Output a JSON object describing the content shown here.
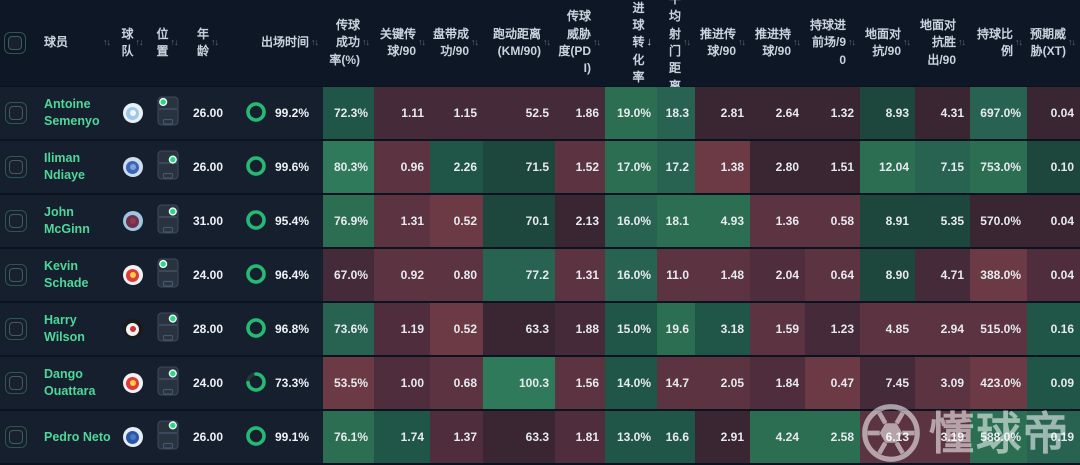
{
  "table": {
    "header": {
      "left": {
        "player": "球员",
        "team": "球队",
        "position": "位置",
        "age": "年龄",
        "minutes": "出场时间"
      },
      "stat_columns": [
        {
          "key": "pass-accuracy",
          "label": "传球成功率(%)",
          "sort": "both"
        },
        {
          "key": "key-passes",
          "label": "关键传球/90",
          "sort": "both"
        },
        {
          "key": "dribbles",
          "label": "盘带成功/90",
          "sort": "both"
        },
        {
          "key": "distance",
          "label": "跑动距离(KM/90)",
          "sort": "both"
        },
        {
          "key": "pass-threat",
          "label": "传球威胁度(PDI)",
          "sort": "both"
        },
        {
          "key": "goal-conversion",
          "label": "进球转化率",
          "sort": "desc"
        },
        {
          "key": "avg-shot-distance",
          "label": "平均射门距离",
          "sort": "both"
        },
        {
          "key": "progressive-passes",
          "label": "推进传球/90",
          "sort": "both"
        },
        {
          "key": "progressive-carries",
          "label": "推进持球/90",
          "sort": "both"
        },
        {
          "key": "carries-final-third",
          "label": "持球进前场/90",
          "sort": "both"
        },
        {
          "key": "ground-duels",
          "label": "地面对抗/90",
          "sort": "both"
        },
        {
          "key": "ground-duels-won",
          "label": "地面对抗胜出/90",
          "sort": "both"
        },
        {
          "key": "possession-ratio",
          "label": "持球比例",
          "sort": "both"
        },
        {
          "key": "expected-threat",
          "label": "预期威胁(XT)",
          "sort": "both"
        }
      ]
    },
    "rows": [
      {
        "player": "Antoine Semenyo",
        "team": "manchester-city",
        "badge": {
          "ring": "#e9f1f8",
          "bg": "#9ec8e8",
          "dot": "#f2f6fa"
        },
        "pos_dot": {
          "x": 0.28,
          "y": 0.2
        },
        "age": "26.00",
        "minutes": "99.2%",
        "minutes_pct": 99.2,
        "stats": [
          {
            "v": "72.3%",
            "c": "g2"
          },
          {
            "v": "1.11",
            "c": "n2"
          },
          {
            "v": "1.15",
            "c": "n2"
          },
          {
            "v": "52.5",
            "c": "n2"
          },
          {
            "v": "1.86",
            "c": "n2"
          },
          {
            "v": "19.0%",
            "c": "g4"
          },
          {
            "v": "18.3",
            "c": "g3"
          },
          {
            "v": "2.81",
            "c": "n1"
          },
          {
            "v": "2.64",
            "c": "n1"
          },
          {
            "v": "1.32",
            "c": "n1"
          },
          {
            "v": "8.93",
            "c": "g1"
          },
          {
            "v": "4.31",
            "c": "n1"
          },
          {
            "v": "697.0%",
            "c": "g3"
          },
          {
            "v": "0.04",
            "c": "n1"
          }
        ]
      },
      {
        "player": "Iliman Ndiaye",
        "team": "everton",
        "badge": {
          "ring": "#cfdcef",
          "bg": "#3a66b5",
          "dot": "#7fa3d8"
        },
        "pos_dot": {
          "x": 0.72,
          "y": 0.32
        },
        "age": "26.00",
        "minutes": "99.6%",
        "minutes_pct": 99.6,
        "stats": [
          {
            "v": "80.3%",
            "c": "g5"
          },
          {
            "v": "0.96",
            "c": "r2"
          },
          {
            "v": "2.26",
            "c": "g2"
          },
          {
            "v": "71.5",
            "c": "g1"
          },
          {
            "v": "1.52",
            "c": "r2"
          },
          {
            "v": "17.0%",
            "c": "g4"
          },
          {
            "v": "17.2",
            "c": "g3"
          },
          {
            "v": "1.38",
            "c": "r3"
          },
          {
            "v": "2.80",
            "c": "n1"
          },
          {
            "v": "1.51",
            "c": "n1"
          },
          {
            "v": "12.04",
            "c": "g4"
          },
          {
            "v": "7.15",
            "c": "g3"
          },
          {
            "v": "753.0%",
            "c": "g4"
          },
          {
            "v": "0.10",
            "c": "g1"
          }
        ]
      },
      {
        "player": "John McGinn",
        "team": "aston-villa",
        "badge": {
          "ring": "#9fc5e0",
          "bg": "#73304a",
          "dot": "#8a3a55"
        },
        "pos_dot": {
          "x": 0.72,
          "y": 0.25
        },
        "age": "31.00",
        "minutes": "95.4%",
        "minutes_pct": 95.4,
        "stats": [
          {
            "v": "76.9%",
            "c": "g4"
          },
          {
            "v": "1.31",
            "c": "r2"
          },
          {
            "v": "0.52",
            "c": "r3"
          },
          {
            "v": "70.1",
            "c": "g1"
          },
          {
            "v": "2.13",
            "c": "n1"
          },
          {
            "v": "16.0%",
            "c": "g3"
          },
          {
            "v": "18.1",
            "c": "g4"
          },
          {
            "v": "4.93",
            "c": "g4"
          },
          {
            "v": "1.36",
            "c": "r2"
          },
          {
            "v": "0.58",
            "c": "r2"
          },
          {
            "v": "8.91",
            "c": "g1"
          },
          {
            "v": "5.35",
            "c": "g1"
          },
          {
            "v": "570.0%",
            "c": "n1"
          },
          {
            "v": "0.04",
            "c": "n1"
          }
        ]
      },
      {
        "player": "Kevin Schade",
        "team": "brentford",
        "badge": {
          "ring": "#f2f2f2",
          "bg": "#dd3a3c",
          "dot": "#f5d03a"
        },
        "pos_dot": {
          "x": 0.28,
          "y": 0.2
        },
        "age": "24.00",
        "minutes": "96.4%",
        "minutes_pct": 96.4,
        "stats": [
          {
            "v": "67.0%",
            "c": "n2"
          },
          {
            "v": "0.92",
            "c": "r2"
          },
          {
            "v": "0.80",
            "c": "r2"
          },
          {
            "v": "77.2",
            "c": "g3"
          },
          {
            "v": "1.31",
            "c": "r2"
          },
          {
            "v": "16.0%",
            "c": "g3"
          },
          {
            "v": "11.0",
            "c": "r2"
          },
          {
            "v": "1.48",
            "c": "r2"
          },
          {
            "v": "2.04",
            "c": "r1"
          },
          {
            "v": "0.64",
            "c": "r2"
          },
          {
            "v": "8.90",
            "c": "g1"
          },
          {
            "v": "4.71",
            "c": "n2"
          },
          {
            "v": "388.0%",
            "c": "r3"
          },
          {
            "v": "0.04",
            "c": "r1"
          }
        ]
      },
      {
        "player": "Harry Wilson",
        "team": "fulham",
        "badge": {
          "ring": "#1a1a1a",
          "bg": "#f2f2f2",
          "dot": "#c33"
        },
        "pos_dot": {
          "x": 0.72,
          "y": 0.22
        },
        "age": "28.00",
        "minutes": "96.8%",
        "minutes_pct": 96.8,
        "stats": [
          {
            "v": "73.6%",
            "c": "g3"
          },
          {
            "v": "1.19",
            "c": "r1"
          },
          {
            "v": "0.52",
            "c": "r3"
          },
          {
            "v": "63.3",
            "c": "n1"
          },
          {
            "v": "1.88",
            "c": "n2"
          },
          {
            "v": "15.0%",
            "c": "g2"
          },
          {
            "v": "19.6",
            "c": "g4"
          },
          {
            "v": "3.18",
            "c": "g2"
          },
          {
            "v": "1.59",
            "c": "r2"
          },
          {
            "v": "1.23",
            "c": "n2"
          },
          {
            "v": "4.85",
            "c": "r2"
          },
          {
            "v": "2.94",
            "c": "r2"
          },
          {
            "v": "515.0%",
            "c": "r2"
          },
          {
            "v": "0.16",
            "c": "g2"
          }
        ]
      },
      {
        "player": "Dango Ouattara",
        "team": "brentford",
        "badge": {
          "ring": "#f2f2f2",
          "bg": "#dd3a3c",
          "dot": "#f5d03a"
        },
        "pos_dot": {
          "x": 0.72,
          "y": 0.25
        },
        "age": "24.00",
        "minutes": "73.3%",
        "minutes_pct": 73.3,
        "stats": [
          {
            "v": "53.5%",
            "c": "r3"
          },
          {
            "v": "1.00",
            "c": "r1"
          },
          {
            "v": "0.68",
            "c": "r2"
          },
          {
            "v": "100.3",
            "c": "g5"
          },
          {
            "v": "1.56",
            "c": "r2"
          },
          {
            "v": "14.0%",
            "c": "g2"
          },
          {
            "v": "14.7",
            "c": "r2"
          },
          {
            "v": "2.05",
            "c": "r2"
          },
          {
            "v": "1.84",
            "c": "r1"
          },
          {
            "v": "0.47",
            "c": "r3"
          },
          {
            "v": "7.45",
            "c": "n2"
          },
          {
            "v": "3.09",
            "c": "r2"
          },
          {
            "v": "423.0%",
            "c": "r3"
          },
          {
            "v": "0.09",
            "c": "g2"
          }
        ]
      },
      {
        "player": "Pedro Neto",
        "team": "chelsea",
        "badge": {
          "ring": "#e6edf6",
          "bg": "#2a55a8",
          "dot": "#4a78c8"
        },
        "pos_dot": {
          "x": 0.72,
          "y": 0.18
        },
        "age": "26.00",
        "minutes": "99.1%",
        "minutes_pct": 99.1,
        "stats": [
          {
            "v": "76.1%",
            "c": "g4"
          },
          {
            "v": "1.74",
            "c": "g2"
          },
          {
            "v": "1.37",
            "c": "r1"
          },
          {
            "v": "63.3",
            "c": "n1"
          },
          {
            "v": "1.81",
            "c": "r1"
          },
          {
            "v": "13.0%",
            "c": "g2"
          },
          {
            "v": "16.6",
            "c": "g2"
          },
          {
            "v": "2.91",
            "c": "n1"
          },
          {
            "v": "4.24",
            "c": "g4"
          },
          {
            "v": "2.58",
            "c": "g4"
          },
          {
            "v": "6.13",
            "c": "r2"
          },
          {
            "v": "3.19",
            "c": "r2"
          },
          {
            "v": "588.0%",
            "c": "g4"
          },
          {
            "v": "0.19",
            "c": "g3"
          }
        ]
      }
    ]
  },
  "palette": {
    "g1": "#1d473c",
    "g2": "#205648",
    "g3": "#276350",
    "g4": "#2b6e52",
    "g5": "#2f7a5a",
    "n1": "#3a2533",
    "n2": "#452a39",
    "r1": "#4f2d3c",
    "r2": "#5c3340",
    "r3": "#6b3a45",
    "name_accent": "#4fd79a",
    "ring_green": "#27b873"
  },
  "watermark": {
    "text": "懂球帝"
  }
}
